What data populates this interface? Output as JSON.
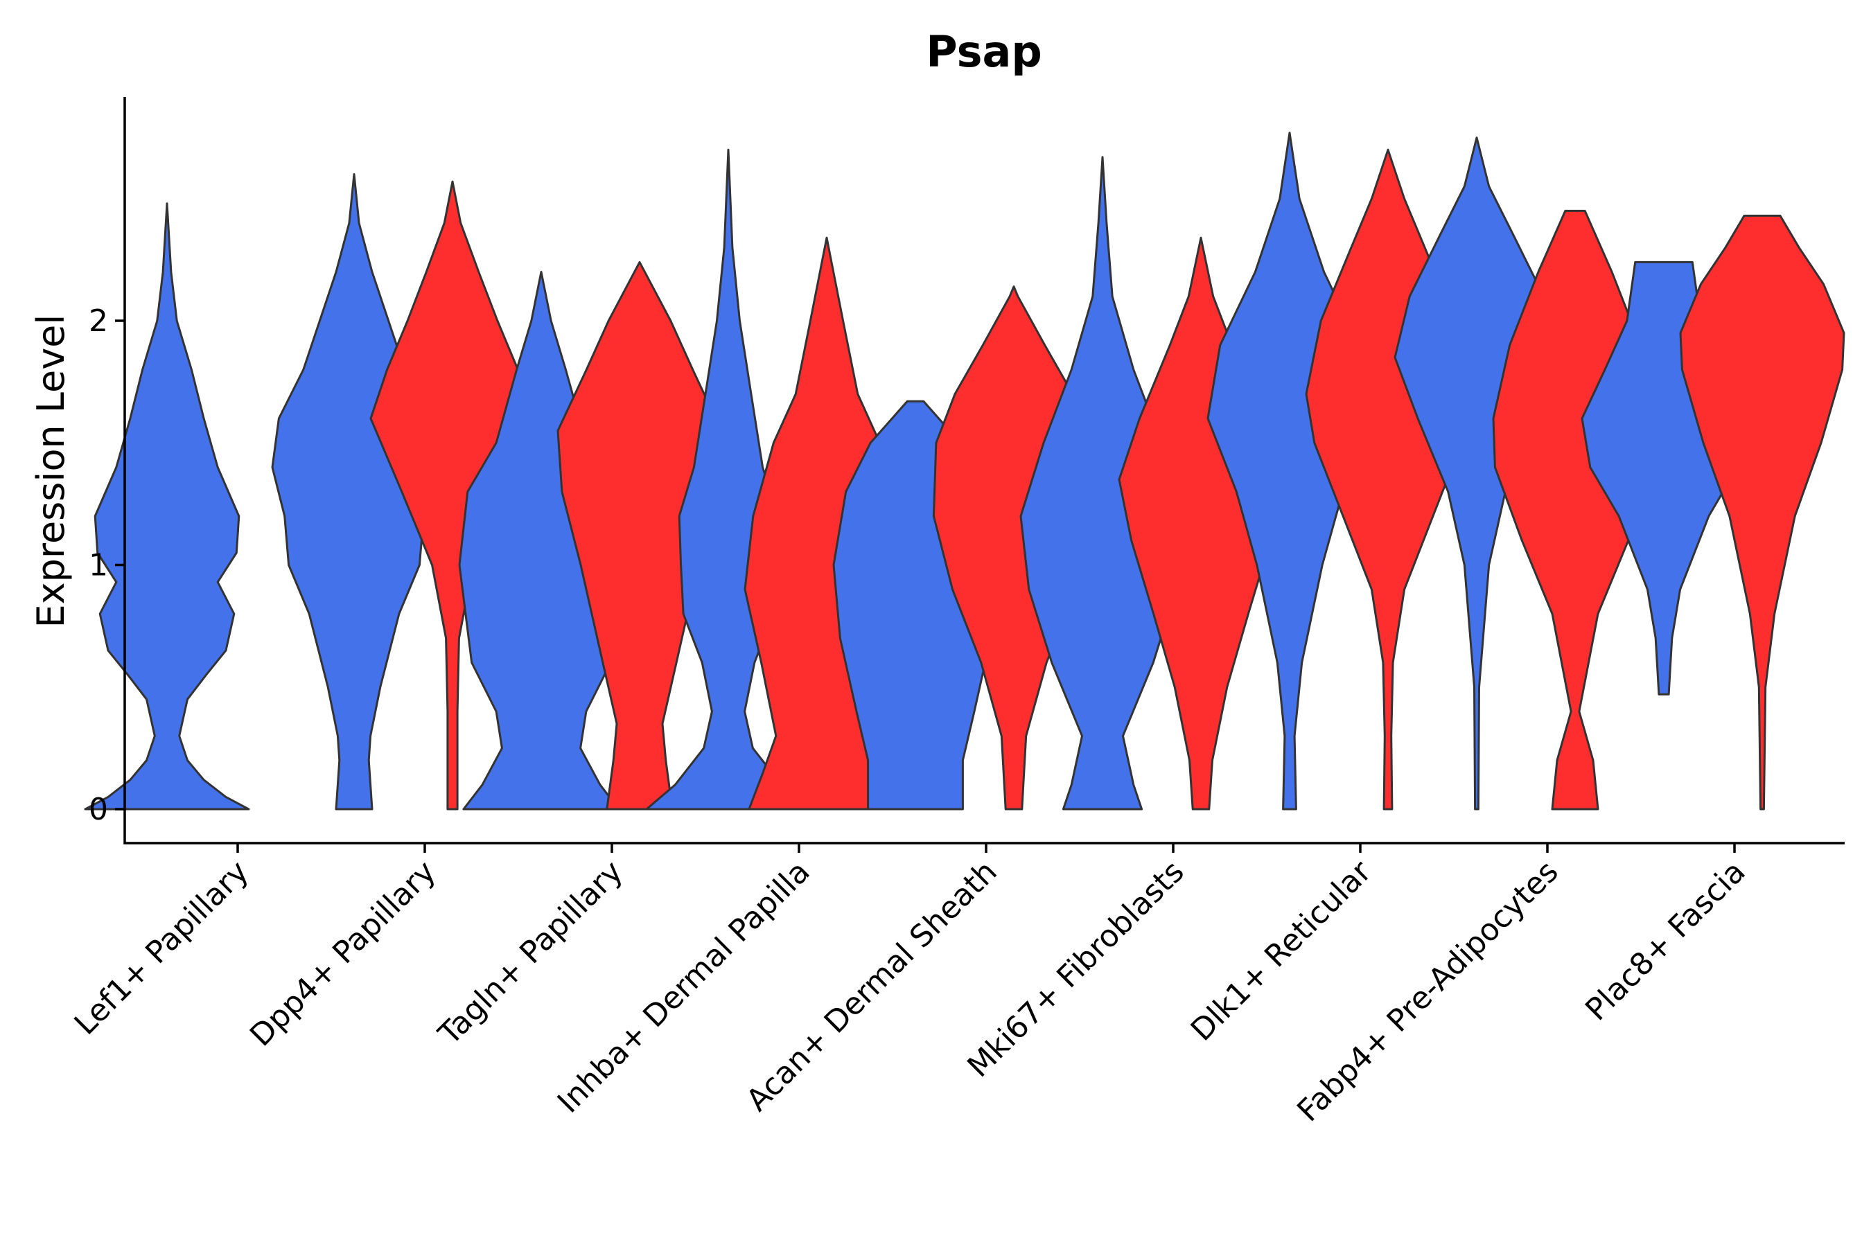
{
  "chart_data": {
    "type": "violin",
    "title": "Psap",
    "xlabel": "",
    "ylabel": "Expression Level",
    "ylim": [
      -0.14,
      2.9
    ],
    "yticks": [
      0,
      1,
      2
    ],
    "groups_colors": {
      "blue": "#4472EA",
      "red": "#FF2E2E"
    },
    "categories": [
      "Lef1+ Papillary",
      "Dpp4+ Papillary",
      "Tagln+ Papillary",
      "Inhba+ Dermal Papilla",
      "Acan+ Dermal Sheath",
      "Mki67+ Fibroblasts",
      "Dlk1+ Reticular",
      "Fabp4+ Pre-Adipocytes",
      "Plac8+ Fascia"
    ],
    "violins": [
      {
        "category": "Lef1+ Papillary",
        "group": "blue",
        "max": 2.48,
        "profile": [
          [
            0,
            1.0
          ],
          [
            0.05,
            0.72
          ],
          [
            0.12,
            0.45
          ],
          [
            0.2,
            0.25
          ],
          [
            0.3,
            0.15
          ],
          [
            0.45,
            0.25
          ],
          [
            0.55,
            0.48
          ],
          [
            0.65,
            0.72
          ],
          [
            0.8,
            0.82
          ],
          [
            0.93,
            0.62
          ],
          [
            1.05,
            0.85
          ],
          [
            1.2,
            0.88
          ],
          [
            1.4,
            0.62
          ],
          [
            1.6,
            0.45
          ],
          [
            1.8,
            0.3
          ],
          [
            2.0,
            0.12
          ],
          [
            2.2,
            0.05
          ],
          [
            2.48,
            0.0
          ]
        ]
      },
      {
        "category": "Dpp4+ Papillary",
        "group": "blue",
        "max": 2.6,
        "profile": [
          [
            0,
            0.22
          ],
          [
            0.2,
            0.18
          ],
          [
            0.3,
            0.2
          ],
          [
            0.5,
            0.32
          ],
          [
            0.8,
            0.55
          ],
          [
            1.0,
            0.8
          ],
          [
            1.2,
            0.85
          ],
          [
            1.4,
            1.0
          ],
          [
            1.6,
            0.92
          ],
          [
            1.8,
            0.62
          ],
          [
            2.0,
            0.42
          ],
          [
            2.2,
            0.22
          ],
          [
            2.4,
            0.06
          ],
          [
            2.6,
            0.0
          ]
        ]
      },
      {
        "category": "Dpp4+ Papillary",
        "group": "red",
        "max": 2.57,
        "profile": [
          [
            0,
            0.06
          ],
          [
            0.4,
            0.06
          ],
          [
            0.7,
            0.08
          ],
          [
            1.0,
            0.25
          ],
          [
            1.3,
            0.62
          ],
          [
            1.6,
            1.0
          ],
          [
            1.8,
            0.8
          ],
          [
            2.0,
            0.55
          ],
          [
            2.2,
            0.32
          ],
          [
            2.4,
            0.1
          ],
          [
            2.57,
            0.0
          ]
        ]
      },
      {
        "category": "Tagln+ Papillary",
        "group": "blue",
        "max": 2.2,
        "profile": [
          [
            0,
            0.95
          ],
          [
            0.1,
            0.72
          ],
          [
            0.25,
            0.48
          ],
          [
            0.4,
            0.55
          ],
          [
            0.6,
            0.85
          ],
          [
            1.0,
            1.0
          ],
          [
            1.3,
            0.9
          ],
          [
            1.5,
            0.55
          ],
          [
            1.8,
            0.3
          ],
          [
            2.0,
            0.12
          ],
          [
            2.2,
            0.0
          ]
        ]
      },
      {
        "category": "Tagln+ Papillary",
        "group": "red",
        "max": 2.24,
        "profile": [
          [
            0,
            0.4
          ],
          [
            0.2,
            0.32
          ],
          [
            0.35,
            0.28
          ],
          [
            0.6,
            0.45
          ],
          [
            1.0,
            0.72
          ],
          [
            1.3,
            0.95
          ],
          [
            1.55,
            1.0
          ],
          [
            1.8,
            0.65
          ],
          [
            2.0,
            0.38
          ],
          [
            2.24,
            0.0
          ]
        ]
      },
      {
        "category": "Inhba+ Dermal Papilla",
        "group": "blue",
        "max": 2.7,
        "profile": [
          [
            0,
            1.0
          ],
          [
            0.1,
            0.65
          ],
          [
            0.25,
            0.3
          ],
          [
            0.4,
            0.2
          ],
          [
            0.6,
            0.32
          ],
          [
            0.8,
            0.55
          ],
          [
            1.0,
            0.58
          ],
          [
            1.2,
            0.6
          ],
          [
            1.4,
            0.42
          ],
          [
            1.7,
            0.28
          ],
          [
            2.0,
            0.14
          ],
          [
            2.3,
            0.05
          ],
          [
            2.7,
            0.0
          ]
        ]
      },
      {
        "category": "Inhba+ Dermal Papilla",
        "group": "red",
        "max": 2.34,
        "profile": [
          [
            0,
            0.95
          ],
          [
            0.15,
            0.78
          ],
          [
            0.3,
            0.62
          ],
          [
            0.6,
            0.8
          ],
          [
            0.9,
            1.0
          ],
          [
            1.2,
            0.9
          ],
          [
            1.5,
            0.65
          ],
          [
            1.7,
            0.38
          ],
          [
            2.0,
            0.2
          ],
          [
            2.34,
            0.0
          ]
        ]
      },
      {
        "category": "Acan+ Dermal Sheath",
        "group": "blue",
        "max": 1.67,
        "profile": [
          [
            0,
            0.58
          ],
          [
            0.2,
            0.58
          ],
          [
            0.4,
            0.72
          ],
          [
            0.7,
            0.92
          ],
          [
            1.0,
            1.0
          ],
          [
            1.3,
            0.85
          ],
          [
            1.5,
            0.55
          ],
          [
            1.67,
            0.1
          ]
        ]
      },
      {
        "category": "Acan+ Dermal Sheath",
        "group": "red",
        "max": 2.14,
        "profile": [
          [
            0,
            0.1
          ],
          [
            0.3,
            0.15
          ],
          [
            0.6,
            0.4
          ],
          [
            0.9,
            0.75
          ],
          [
            1.2,
            0.98
          ],
          [
            1.5,
            0.95
          ],
          [
            1.7,
            0.72
          ],
          [
            1.9,
            0.38
          ],
          [
            2.1,
            0.05
          ],
          [
            2.14,
            0.0
          ]
        ]
      },
      {
        "category": "Mki67+ Fibroblasts",
        "group": "blue",
        "max": 2.67,
        "profile": [
          [
            0,
            0.48
          ],
          [
            0.1,
            0.38
          ],
          [
            0.3,
            0.25
          ],
          [
            0.6,
            0.62
          ],
          [
            0.9,
            0.9
          ],
          [
            1.2,
            1.0
          ],
          [
            1.5,
            0.72
          ],
          [
            1.8,
            0.38
          ],
          [
            2.1,
            0.12
          ],
          [
            2.4,
            0.05
          ],
          [
            2.67,
            0.0
          ]
        ]
      },
      {
        "category": "Mki67+ Fibroblasts",
        "group": "red",
        "max": 2.34,
        "profile": [
          [
            0,
            0.1
          ],
          [
            0.2,
            0.14
          ],
          [
            0.5,
            0.32
          ],
          [
            0.8,
            0.58
          ],
          [
            1.1,
            0.85
          ],
          [
            1.35,
            1.0
          ],
          [
            1.6,
            0.75
          ],
          [
            1.9,
            0.38
          ],
          [
            2.1,
            0.15
          ],
          [
            2.34,
            0.0
          ]
        ]
      },
      {
        "category": "Dlk1+ Reticular",
        "group": "blue",
        "max": 2.77,
        "profile": [
          [
            0,
            0.08
          ],
          [
            0.3,
            0.06
          ],
          [
            0.6,
            0.15
          ],
          [
            1.0,
            0.4
          ],
          [
            1.3,
            0.65
          ],
          [
            1.6,
            1.0
          ],
          [
            1.9,
            0.85
          ],
          [
            2.2,
            0.42
          ],
          [
            2.5,
            0.12
          ],
          [
            2.77,
            0.0
          ]
        ]
      },
      {
        "category": "Dlk1+ Reticular",
        "group": "red",
        "max": 2.7,
        "profile": [
          [
            0,
            0.05
          ],
          [
            0.3,
            0.04
          ],
          [
            0.6,
            0.06
          ],
          [
            0.9,
            0.2
          ],
          [
            1.2,
            0.55
          ],
          [
            1.5,
            0.9
          ],
          [
            1.7,
            1.0
          ],
          [
            2.0,
            0.82
          ],
          [
            2.3,
            0.45
          ],
          [
            2.5,
            0.2
          ],
          [
            2.7,
            0.0
          ]
        ]
      },
      {
        "category": "Fabp4+ Pre-Adipocytes",
        "group": "blue",
        "max": 2.75,
        "profile": [
          [
            0,
            0.02
          ],
          [
            0.5,
            0.03
          ],
          [
            1.0,
            0.15
          ],
          [
            1.3,
            0.35
          ],
          [
            1.6,
            0.72
          ],
          [
            1.85,
            1.0
          ],
          [
            2.1,
            0.82
          ],
          [
            2.35,
            0.45
          ],
          [
            2.55,
            0.15
          ],
          [
            2.75,
            0.0
          ]
        ]
      },
      {
        "category": "Fabp4+ Pre-Adipocytes",
        "group": "red",
        "max": 2.45,
        "profile": [
          [
            0,
            0.28
          ],
          [
            0.2,
            0.22
          ],
          [
            0.4,
            0.05
          ],
          [
            0.8,
            0.28
          ],
          [
            1.1,
            0.65
          ],
          [
            1.4,
            0.98
          ],
          [
            1.6,
            1.0
          ],
          [
            1.9,
            0.8
          ],
          [
            2.2,
            0.45
          ],
          [
            2.45,
            0.12
          ]
        ]
      },
      {
        "category": "Plac8+ Fascia",
        "group": "blue",
        "max": 2.24,
        "profile": [
          [
            0.47,
            0.06
          ],
          [
            0.7,
            0.1
          ],
          [
            0.9,
            0.2
          ],
          [
            1.2,
            0.55
          ],
          [
            1.4,
            0.9
          ],
          [
            1.6,
            1.0
          ],
          [
            1.8,
            0.72
          ],
          [
            2.0,
            0.45
          ],
          [
            2.24,
            0.35
          ]
        ]
      },
      {
        "category": "Plac8+ Fascia",
        "group": "red",
        "max": 2.43,
        "profile": [
          [
            0,
            0.02
          ],
          [
            0.5,
            0.04
          ],
          [
            0.8,
            0.15
          ],
          [
            1.2,
            0.4
          ],
          [
            1.5,
            0.72
          ],
          [
            1.8,
            0.98
          ],
          [
            1.95,
            1.0
          ],
          [
            2.15,
            0.75
          ],
          [
            2.3,
            0.45
          ],
          [
            2.43,
            0.22
          ]
        ]
      }
    ]
  }
}
